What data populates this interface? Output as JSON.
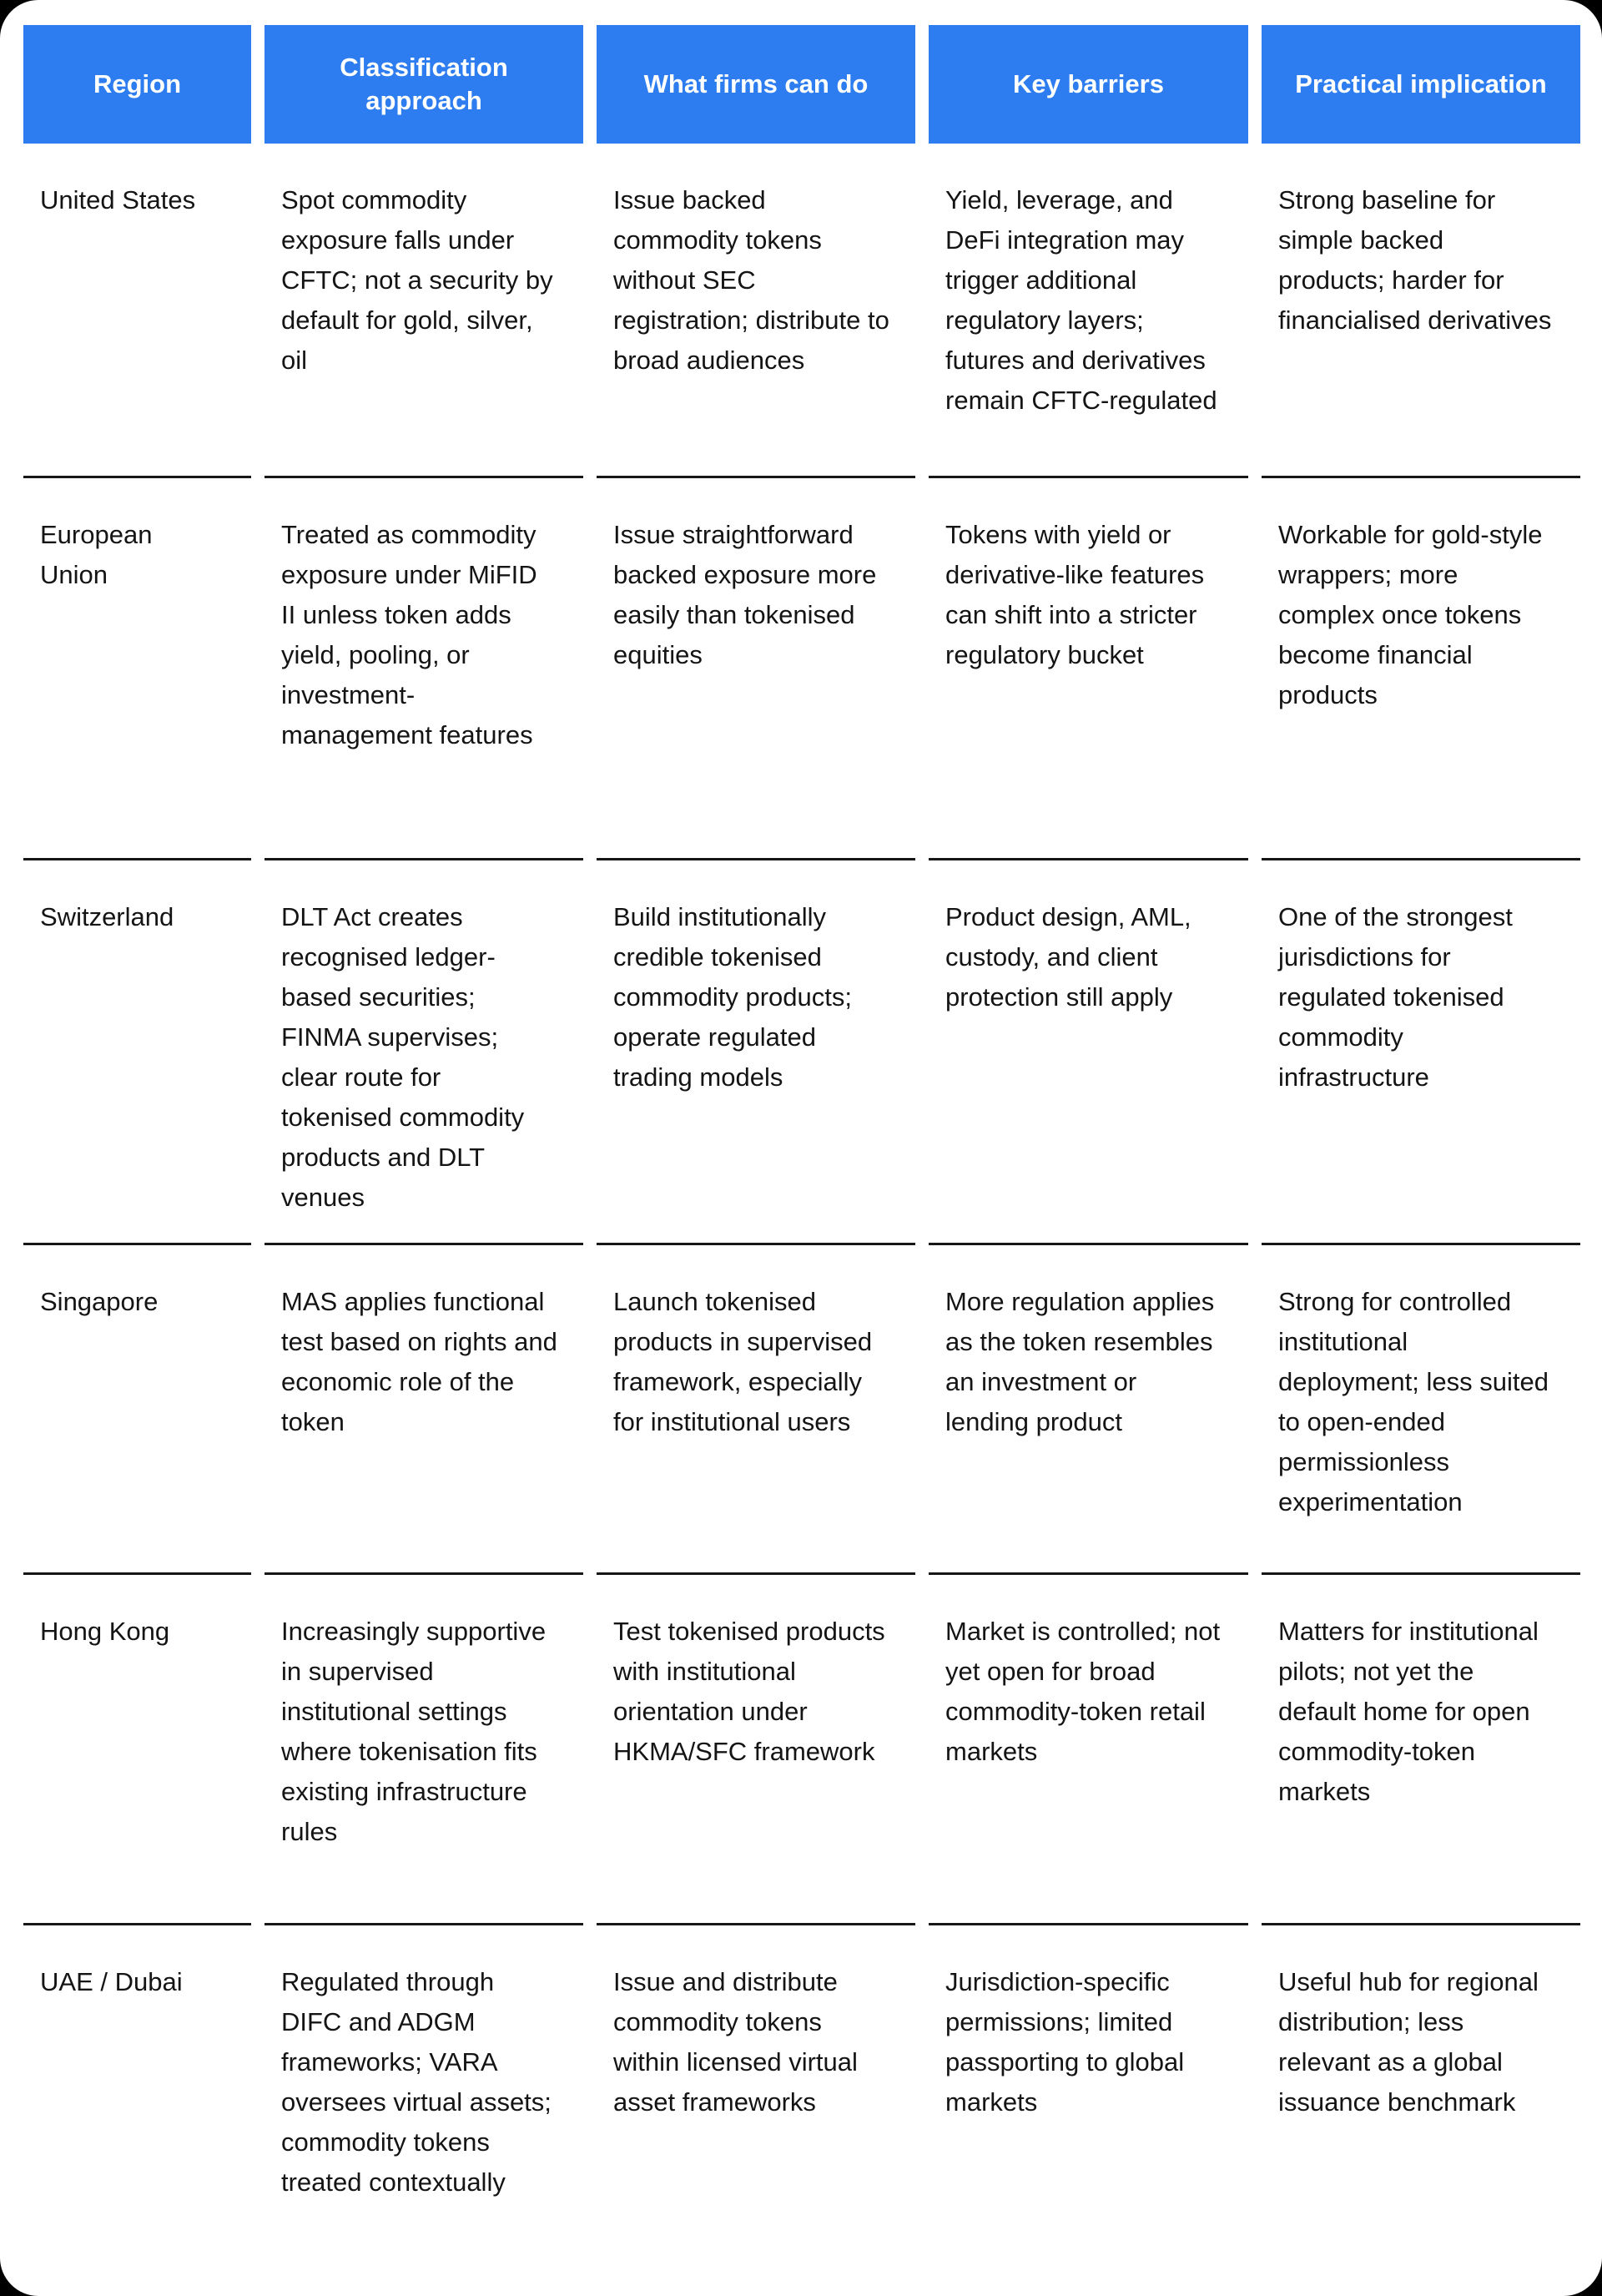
{
  "colors": {
    "page_bg": "#000000",
    "card_bg": "#ffffff",
    "header_bg": "#2d7df1",
    "header_text": "#ffffff",
    "body_text": "#141414",
    "divider": "#171717"
  },
  "table": {
    "columns": [
      "Region",
      "Classification approach",
      "What firms can do",
      "Key barriers",
      "Practical implication"
    ],
    "rows": [
      {
        "region": "United States",
        "classification": "Spot commodity exposure falls under CFTC; not a security by default for gold, silver, oil",
        "firms": "Issue backed commodity tokens without SEC registration; distribute to broad audiences",
        "barriers": "Yield, leverage, and DeFi integration may trigger additional regulatory layers; futures and derivatives remain CFTC-regulated",
        "implication": "Strong baseline for simple backed products; harder for financialised derivatives"
      },
      {
        "region": "European Union",
        "classification": "Treated as commodity exposure under MiFID II unless token adds yield, pooling, or investment-management features",
        "firms": "Issue straightforward backed exposure more easily than tokenised equities",
        "barriers": "Tokens with yield or derivative-like features can shift into a stricter regulatory bucket",
        "implication": "Workable for gold-style wrappers; more complex once tokens become financial products"
      },
      {
        "region": "Switzerland",
        "classification": "DLT Act creates recognised ledger-based securities; FINMA supervises; clear route for tokenised commodity products and DLT venues",
        "firms": "Build institutionally credible tokenised commodity products; operate regulated trading models",
        "barriers": "Product design, AML, custody, and client protection still apply",
        "implication": "One of the strongest jurisdictions for regulated tokenised commodity infrastructure"
      },
      {
        "region": "Singapore",
        "classification": "MAS applies functional test based on rights and economic role of the token",
        "firms": "Launch tokenised products in supervised framework, especially for institutional users",
        "barriers": "More regulation applies as the token resembles an investment or lending product",
        "implication": "Strong for controlled institutional deployment; less suited to open-ended permissionless experimentation"
      },
      {
        "region": "Hong Kong",
        "classification": "Increasingly supportive in supervised institutional settings where tokenisation fits existing infrastructure rules",
        "firms": "Test tokenised products with institutional orientation under HKMA/SFC framework",
        "barriers": "Market is controlled; not yet open for broad commodity-token retail markets",
        "implication": "Matters for institutional pilots; not yet the default home for open commodity-token markets"
      },
      {
        "region": "UAE / Dubai",
        "classification": "Regulated through DIFC and ADGM frameworks; VARA oversees virtual assets; commodity tokens treated contextually",
        "firms": "Issue and distribute commodity tokens within licensed virtual asset frameworks",
        "barriers": "Jurisdiction-specific permissions; limited passporting to global markets",
        "implication": "Useful hub for regional distribution; less relevant as a global issuance benchmark"
      }
    ]
  }
}
